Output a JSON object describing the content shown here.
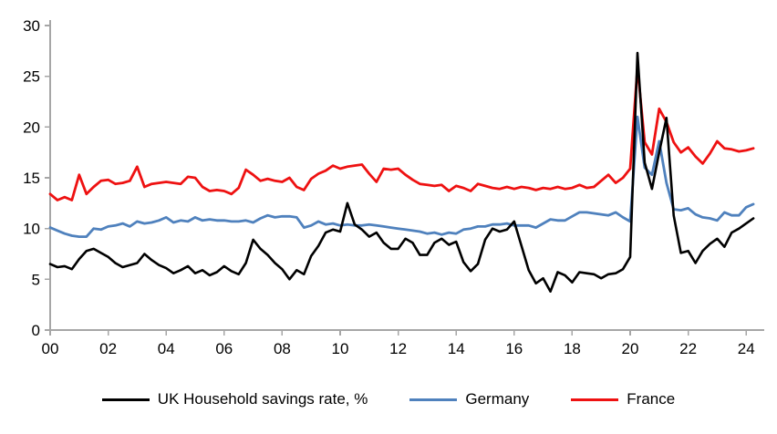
{
  "chart_data": {
    "type": "line",
    "title": "",
    "frequency": "quarterly",
    "start_period": "2000Q1",
    "end_period": "2024Q2",
    "legend_position": "bottom",
    "grid": false,
    "axis_color": "#a6a6a6",
    "x_axis": {
      "tick_labels": [
        "00",
        "02",
        "04",
        "06",
        "08",
        "10",
        "12",
        "14",
        "16",
        "18",
        "20",
        "22",
        "24"
      ],
      "tick_years": [
        0,
        2,
        4,
        6,
        8,
        10,
        12,
        14,
        16,
        18,
        20,
        22,
        24
      ]
    },
    "y_axis": {
      "tick_labels": [
        "0",
        "5",
        "10",
        "15",
        "20",
        "25",
        "30"
      ],
      "tick_values": [
        0,
        5,
        10,
        15,
        20,
        25,
        30
      ],
      "range": [
        0,
        30
      ]
    },
    "series": [
      {
        "name": "UK Household savings rate, %",
        "color": "#000000",
        "values": [
          6.5,
          6.2,
          6.3,
          6.0,
          7.0,
          7.8,
          8.0,
          7.6,
          7.2,
          6.6,
          6.2,
          6.4,
          6.6,
          7.5,
          6.9,
          6.4,
          6.1,
          5.6,
          5.9,
          6.3,
          5.6,
          5.9,
          5.4,
          5.7,
          6.3,
          5.8,
          5.5,
          6.6,
          8.9,
          8.0,
          7.4,
          6.6,
          6.0,
          5.0,
          5.9,
          5.5,
          7.3,
          8.3,
          9.6,
          9.9,
          9.7,
          12.5,
          10.4,
          9.9,
          9.2,
          9.6,
          8.6,
          8.0,
          8.0,
          9.0,
          8.6,
          7.4,
          7.4,
          8.6,
          9.0,
          8.4,
          8.7,
          6.7,
          5.8,
          6.5,
          8.9,
          10.0,
          9.7,
          9.9,
          10.7,
          8.3,
          5.9,
          4.6,
          5.1,
          3.8,
          5.7,
          5.4,
          4.7,
          5.7,
          5.6,
          5.5,
          5.1,
          5.5,
          5.6,
          6.0,
          7.2,
          27.3,
          16.5,
          13.9,
          17.5,
          20.9,
          11.3,
          7.6,
          7.8,
          6.6,
          7.8,
          8.5,
          9.0,
          8.2,
          9.6,
          10.0,
          10.5,
          11.0
        ]
      },
      {
        "name": "Germany",
        "color": "#4f81bd",
        "values": [
          10.1,
          9.8,
          9.5,
          9.3,
          9.2,
          9.2,
          10.0,
          9.9,
          10.2,
          10.3,
          10.5,
          10.2,
          10.7,
          10.5,
          10.6,
          10.8,
          11.1,
          10.6,
          10.8,
          10.7,
          11.1,
          10.8,
          10.9,
          10.8,
          10.8,
          10.7,
          10.7,
          10.8,
          10.6,
          11.0,
          11.3,
          11.1,
          11.2,
          11.2,
          11.1,
          10.1,
          10.3,
          10.7,
          10.4,
          10.5,
          10.3,
          10.4,
          10.3,
          10.3,
          10.4,
          10.3,
          10.2,
          10.1,
          10.0,
          9.9,
          9.8,
          9.7,
          9.5,
          9.6,
          9.4,
          9.6,
          9.5,
          9.9,
          10.0,
          10.2,
          10.2,
          10.4,
          10.4,
          10.5,
          10.3,
          10.3,
          10.3,
          10.1,
          10.5,
          10.9,
          10.8,
          10.8,
          11.2,
          11.6,
          11.6,
          11.5,
          11.4,
          11.3,
          11.6,
          11.1,
          10.7,
          21.0,
          16.0,
          15.3,
          18.6,
          14.5,
          11.9,
          11.8,
          12.0,
          11.4,
          11.1,
          11.0,
          10.8,
          11.6,
          11.3,
          11.3,
          12.1,
          12.4
        ]
      },
      {
        "name": "France",
        "color": "#ee1111",
        "values": [
          13.4,
          12.8,
          13.1,
          12.8,
          15.3,
          13.4,
          14.1,
          14.7,
          14.8,
          14.4,
          14.5,
          14.7,
          16.1,
          14.1,
          14.4,
          14.5,
          14.6,
          14.5,
          14.4,
          15.1,
          15.0,
          14.1,
          13.7,
          13.8,
          13.7,
          13.4,
          14.0,
          15.8,
          15.3,
          14.7,
          14.9,
          14.7,
          14.6,
          15.0,
          14.1,
          13.8,
          14.9,
          15.4,
          15.7,
          16.2,
          15.9,
          16.1,
          16.2,
          16.3,
          15.4,
          14.6,
          15.9,
          15.8,
          15.9,
          15.3,
          14.8,
          14.4,
          14.3,
          14.2,
          14.3,
          13.7,
          14.2,
          14.0,
          13.7,
          14.4,
          14.2,
          14.0,
          13.9,
          14.1,
          13.9,
          14.1,
          14.0,
          13.8,
          14.0,
          13.9,
          14.1,
          13.9,
          14.0,
          14.3,
          14.0,
          14.1,
          14.7,
          15.3,
          14.5,
          15.0,
          15.9,
          25.9,
          18.5,
          17.3,
          21.8,
          20.5,
          18.5,
          17.5,
          18.0,
          17.1,
          16.4,
          17.4,
          18.6,
          17.9,
          17.8,
          17.6,
          17.7,
          17.9
        ]
      }
    ]
  }
}
